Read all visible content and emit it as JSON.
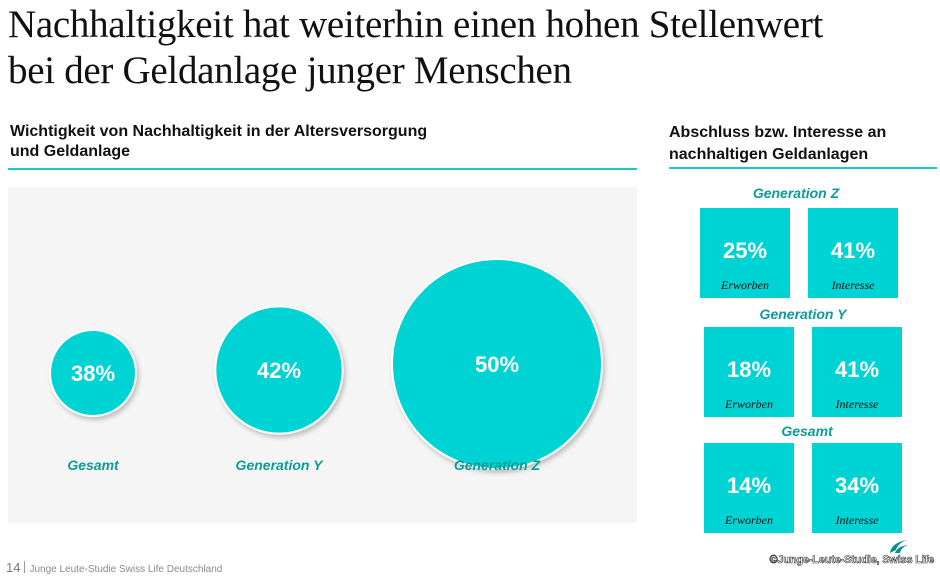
{
  "title": {
    "line1": "Nachhaltigkeit hat weiterhin einen hohen Stellenwert",
    "line2": "bei der Geldanlage junger Menschen"
  },
  "left_section": {
    "heading_line1": "Wichtigkeit von Nachhaltigkeit in der Altersversorgung",
    "heading_line2": "und Geldanlage"
  },
  "right_section": {
    "heading_line1": "Abschluss bzw. Interesse an",
    "heading_line2": "nachhaltigen Geldanlagen",
    "groups": [
      {
        "name": "Generation Z",
        "erworben": "25%",
        "interesse": "41%",
        "erworben_label": "Erworben",
        "interesse_label": "Interesse"
      },
      {
        "name": "Generation Y",
        "erworben": "18%",
        "interesse": "41%",
        "erworben_label": "Erworben",
        "interesse_label": "Interesse"
      },
      {
        "name": "Gesamt",
        "erworben": "14%",
        "interesse": "34%",
        "erworben_label": "Erworben",
        "interesse_label": "Interesse"
      }
    ]
  },
  "chart_data": [
    {
      "type": "bubble",
      "title": "Wichtigkeit von Nachhaltigkeit in der Altersversorgung und Geldanlage",
      "categories": [
        "Gesamt",
        "Generation Y",
        "Generation Z"
      ],
      "values": [
        38,
        42,
        50
      ],
      "value_labels": [
        "38%",
        "42%",
        "50%"
      ],
      "unit": "%"
    },
    {
      "type": "table",
      "title": "Abschluss bzw. Interesse an nachhaltigen Geldanlagen",
      "categories": [
        "Generation Z",
        "Generation Y",
        "Gesamt"
      ],
      "series": [
        {
          "name": "Erworben",
          "values": [
            25,
            18,
            14
          ]
        },
        {
          "name": "Interesse",
          "values": [
            41,
            41,
            34
          ]
        }
      ],
      "unit": "%"
    }
  ],
  "footer": {
    "page_number": "14",
    "source": "Junge Leute-Studie Swiss Life Deutschland",
    "watermark": "©Junge-Leute-Studie, Swiss Life"
  },
  "colors": {
    "accent_teal": "#00d3d3",
    "label_teal": "#0c9c98",
    "rule_teal": "#1bc7c9",
    "panel_gray": "#f5f5f5"
  }
}
